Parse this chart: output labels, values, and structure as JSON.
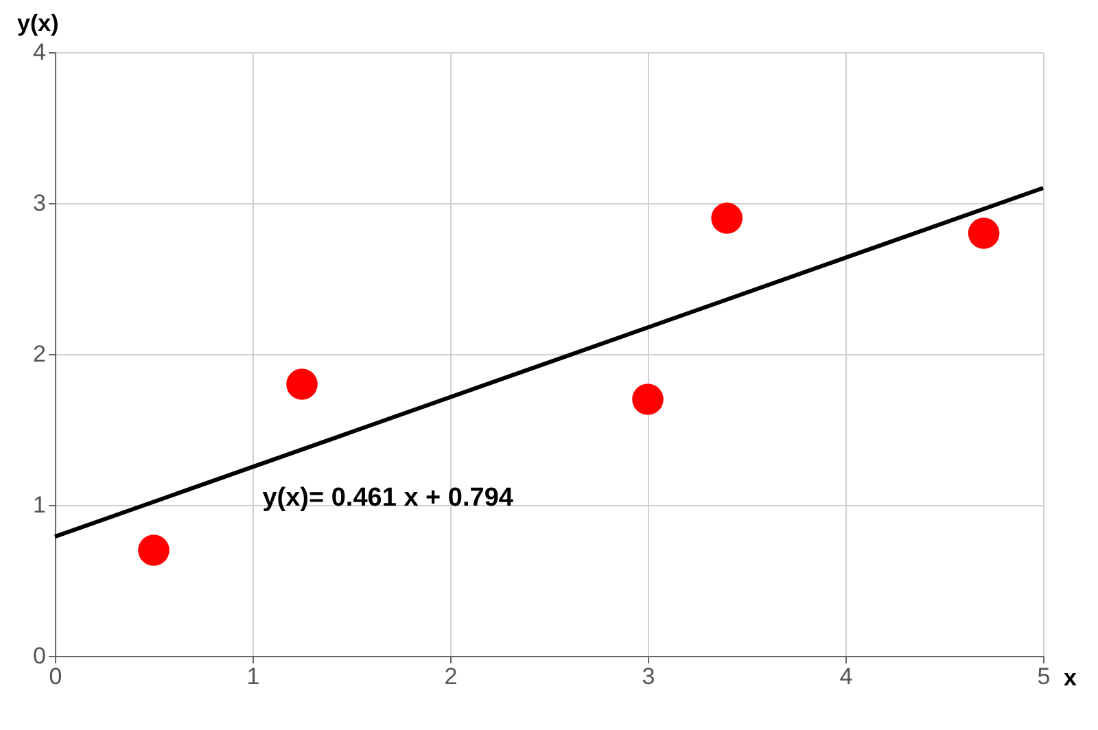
{
  "chart_data": {
    "type": "scatter",
    "xlabel": "x",
    "ylabel": "y(x)",
    "xlim": [
      0,
      5
    ],
    "xticks": [
      0,
      1,
      2,
      3,
      4,
      5
    ],
    "ylim": [
      0,
      4
    ],
    "yticks": [
      0,
      1,
      2,
      3,
      4
    ],
    "grid": true,
    "series": [
      {
        "marker": "circle",
        "color": "#ff0000",
        "x": [
          0.5,
          1.25,
          3.0,
          3.4,
          4.7
        ],
        "values": [
          0.7,
          1.8,
          1.7,
          2.9,
          2.8
        ]
      },
      {
        "type": "line",
        "marker": "none",
        "color": "#000000",
        "x": [
          0,
          5
        ],
        "values": [
          0.79,
          3.1
        ]
      }
    ],
    "annotations": [
      "y(x)= 0.461 x + 0.794"
    ]
  }
}
